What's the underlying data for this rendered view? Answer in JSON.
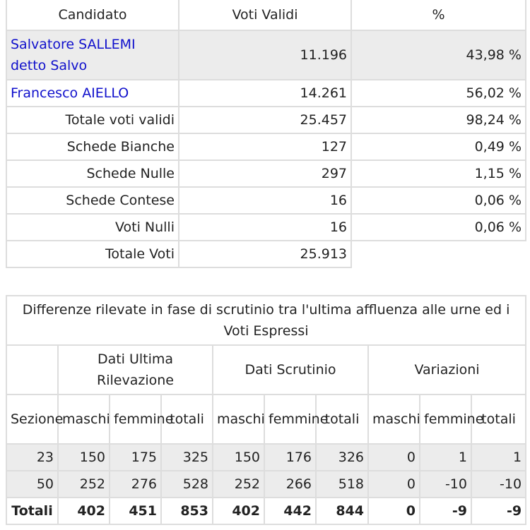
{
  "results": {
    "headers": [
      "Candidato",
      "Voti Validi",
      "%"
    ],
    "candidates": [
      {
        "name": "Salvatore SALLEMI detto Salvo",
        "votes": "11.196",
        "pct": "43,98 %"
      },
      {
        "name": "Francesco AIELLO",
        "votes": "14.261",
        "pct": "56,02 %"
      }
    ],
    "summary": [
      {
        "label": "Totale voti validi",
        "value": "25.457",
        "pct": "98,24 %"
      },
      {
        "label": "Schede Bianche",
        "value": "127",
        "pct": "0,49 %"
      },
      {
        "label": "Schede Nulle",
        "value": "297",
        "pct": "1,15 %"
      },
      {
        "label": "Schede Contese",
        "value": "16",
        "pct": "0,06 %"
      },
      {
        "label": "Voti Nulli",
        "value": "16",
        "pct": "0,06 %"
      },
      {
        "label": "Totale Voti",
        "value": "25.913"
      }
    ]
  },
  "differences": {
    "title": "Differenze rilevate in fase di scrutinio tra l'ultima affluenza alle urne ed i Voti Espressi",
    "groups": [
      "Dati Ultima Rilevazione",
      "Dati Scrutinio",
      "Variazioni"
    ],
    "subheaders": [
      "Sezione",
      "maschi",
      "femmine",
      "totali",
      "maschi",
      "femmine",
      "totali",
      "maschi",
      "femmine",
      "totali"
    ],
    "rows": [
      [
        "23",
        "150",
        "175",
        "325",
        "150",
        "176",
        "326",
        "0",
        "1",
        "1"
      ],
      [
        "50",
        "252",
        "276",
        "528",
        "252",
        "266",
        "518",
        "0",
        "-10",
        "-10"
      ]
    ],
    "total": [
      "Totali",
      "402",
      "451",
      "853",
      "402",
      "442",
      "844",
      "0",
      "-9",
      "-9"
    ]
  }
}
